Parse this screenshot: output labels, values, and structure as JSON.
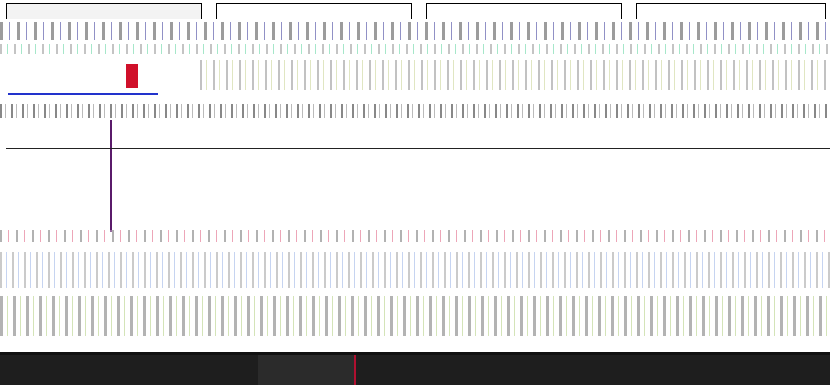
{
  "tabs": [
    {
      "label": "",
      "close": ""
    },
    {
      "label": "",
      "close": ""
    },
    {
      "label": "",
      "close": ""
    },
    {
      "label": "",
      "close": ""
    }
  ],
  "colors": {
    "accent_blue": "#2233cc",
    "accent_red": "#d0102a",
    "divider": "#5a1a6a",
    "footer": "#1e1e1e"
  }
}
